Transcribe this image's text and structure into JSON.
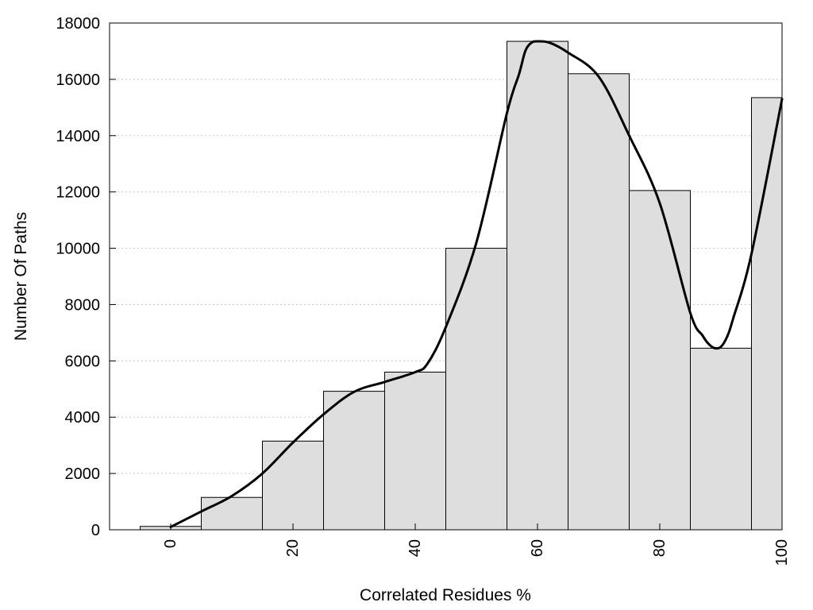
{
  "chart_data": {
    "type": "bar",
    "xlabel": "Correlated Residues %",
    "ylabel": "Number Of Paths",
    "xlim": [
      -10,
      100
    ],
    "ylim": [
      0,
      18000
    ],
    "grid": true,
    "x_ticks": [
      0,
      20,
      40,
      60,
      80,
      100
    ],
    "y_ticks": [
      0,
      2000,
      4000,
      6000,
      8000,
      10000,
      12000,
      14000,
      16000,
      18000
    ],
    "bin_width": 10,
    "bins": [
      {
        "center": 0,
        "value": 120
      },
      {
        "center": 10,
        "value": 1150
      },
      {
        "center": 20,
        "value": 3150
      },
      {
        "center": 30,
        "value": 4920
      },
      {
        "center": 40,
        "value": 5600
      },
      {
        "center": 50,
        "value": 10000
      },
      {
        "center": 60,
        "value": 17350
      },
      {
        "center": 70,
        "value": 16200
      },
      {
        "center": 80,
        "value": 12050
      },
      {
        "center": 90,
        "value": 6450
      },
      {
        "center": 100,
        "value": 15350
      }
    ],
    "curve": {
      "x": [
        0,
        5,
        10,
        15,
        20,
        25,
        30,
        35,
        40,
        42,
        45,
        50,
        55,
        57,
        58,
        59,
        60,
        62,
        65,
        70,
        75,
        80,
        85,
        87,
        88,
        89,
        90,
        91,
        92,
        95,
        100
      ],
      "y": [
        100,
        650,
        1200,
        2000,
        3100,
        4100,
        4900,
        5250,
        5600,
        5900,
        7200,
        10200,
        14800,
        16200,
        17000,
        17300,
        17350,
        17300,
        16950,
        16100,
        14000,
        11600,
        7700,
        6900,
        6600,
        6450,
        6500,
        6850,
        7500,
        9800,
        15300
      ]
    }
  }
}
